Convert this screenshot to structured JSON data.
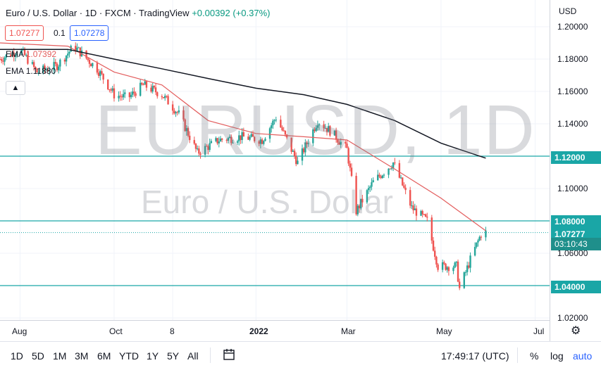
{
  "legend": {
    "symbol": "Euro / U.S. Dollar · 1D · FXCM · TradingView",
    "change": "+0.00392 (+0.37%)",
    "bid": "1.07277",
    "spread": "0.1",
    "ask": "1.07278",
    "ema1_label": "EMA",
    "ema1_value": "1.07392",
    "ema2_label": "EMA",
    "ema2_value": "1.11880",
    "collapse_icon": "chevron-up-icon"
  },
  "watermark": {
    "symbol": "EURUSD, 1D",
    "description": "Euro / U.S. Dollar"
  },
  "colors": {
    "up": "#26a69a",
    "down": "#ef5350",
    "ema_fast": "#e35d5d",
    "ema_slow": "#131722",
    "hline": "#1aa6a6"
  },
  "price_axis": {
    "currency": "USD",
    "ticks": [
      "1.20000",
      "1.18000",
      "1.16000",
      "1.14000",
      "1.10000",
      "1.06000",
      "1.02000"
    ],
    "level_tags": [
      "1.12000",
      "1.08000",
      "1.04000"
    ],
    "last_price": "1.07277",
    "countdown": "03:10:43"
  },
  "time_axis": {
    "labels": [
      "Aug",
      "Oct",
      "8",
      "2022",
      "Mar",
      "May",
      "Jul"
    ]
  },
  "toolbar": {
    "timeframes": [
      "1D",
      "5D",
      "1M",
      "3M",
      "6M",
      "YTD",
      "1Y",
      "5Y",
      "All"
    ],
    "compare_icon": "calendar-range-icon",
    "clock": "17:49:17 (UTC)",
    "percent": "%",
    "log": "log",
    "auto": "auto",
    "settings_icon": "gear-icon"
  },
  "chart_data": {
    "type": "candlestick",
    "title": "Euro / U.S. Dollar · 1D · FXCM",
    "y_range": [
      1.01,
      1.21
    ],
    "x_range": [
      "2021-07-19",
      "2022-07-25"
    ],
    "horizontal_levels": [
      1.12,
      1.08,
      1.04
    ],
    "last_price": 1.07277,
    "close_path": [
      [
        "2021-07-19",
        1.18
      ],
      [
        "2021-08-01",
        1.186
      ],
      [
        "2021-08-12",
        1.172
      ],
      [
        "2021-08-25",
        1.176
      ],
      [
        "2021-09-05",
        1.188
      ],
      [
        "2021-09-20",
        1.174
      ],
      [
        "2021-10-01",
        1.158
      ],
      [
        "2021-10-10",
        1.156
      ],
      [
        "2021-10-20",
        1.164
      ],
      [
        "2021-11-01",
        1.158
      ],
      [
        "2021-11-12",
        1.146
      ],
      [
        "2021-11-24",
        1.122
      ],
      [
        "2021-12-08",
        1.13
      ],
      [
        "2021-12-22",
        1.132
      ],
      [
        "2022-01-05",
        1.13
      ],
      [
        "2022-01-14",
        1.144
      ],
      [
        "2022-01-28",
        1.116
      ],
      [
        "2022-02-10",
        1.142
      ],
      [
        "2022-02-20",
        1.134
      ],
      [
        "2022-03-01",
        1.124
      ],
      [
        "2022-03-07",
        1.086
      ],
      [
        "2022-03-18",
        1.104
      ],
      [
        "2022-03-31",
        1.116
      ],
      [
        "2022-04-12",
        1.088
      ],
      [
        "2022-04-22",
        1.08
      ],
      [
        "2022-04-29",
        1.052
      ],
      [
        "2022-05-11",
        1.052
      ],
      [
        "2022-05-13",
        1.038
      ],
      [
        "2022-05-20",
        1.056
      ],
      [
        "2022-05-27",
        1.072
      ],
      [
        "2022-05-30",
        1.0728
      ]
    ],
    "ema_fast": [
      [
        "2021-07-19",
        1.19
      ],
      [
        "2021-09-01",
        1.188
      ],
      [
        "2021-10-01",
        1.172
      ],
      [
        "2021-11-01",
        1.164
      ],
      [
        "2021-12-01",
        1.142
      ],
      [
        "2022-01-01",
        1.134
      ],
      [
        "2022-02-01",
        1.132
      ],
      [
        "2022-03-01",
        1.13
      ],
      [
        "2022-04-01",
        1.112
      ],
      [
        "2022-05-01",
        1.094
      ],
      [
        "2022-05-30",
        1.07392
      ]
    ],
    "ema_slow": [
      [
        "2021-07-19",
        1.186
      ],
      [
        "2021-09-01",
        1.186
      ],
      [
        "2021-10-01",
        1.18
      ],
      [
        "2021-11-01",
        1.174
      ],
      [
        "2021-12-01",
        1.168
      ],
      [
        "2022-01-01",
        1.162
      ],
      [
        "2022-02-01",
        1.158
      ],
      [
        "2022-03-01",
        1.152
      ],
      [
        "2022-04-01",
        1.142
      ],
      [
        "2022-05-01",
        1.128
      ],
      [
        "2022-05-30",
        1.1188
      ]
    ]
  }
}
